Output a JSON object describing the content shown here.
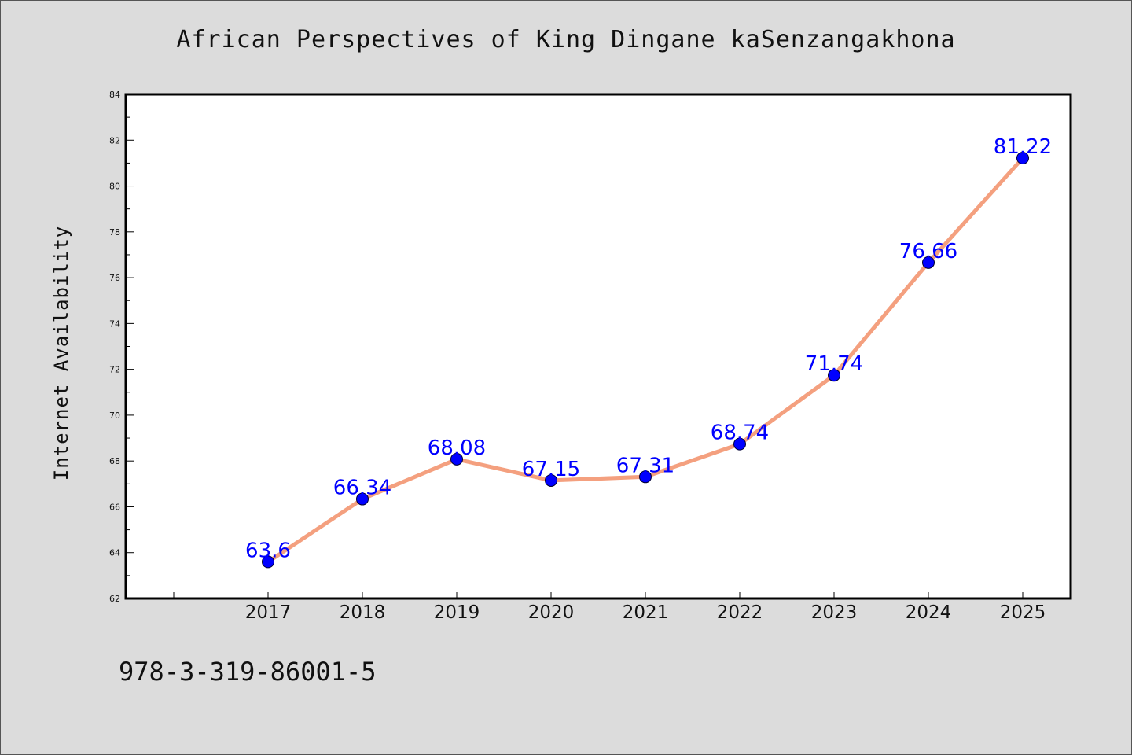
{
  "colors": {
    "background": "#dcdcdc",
    "plot_background": "#ffffff",
    "line": "#f4a07f",
    "marker": "#0000ff",
    "label": "#0000ff",
    "text": "#111111"
  },
  "footnote": "978-3-319-86001-5",
  "chart_data": {
    "type": "line",
    "title": "African Perspectives of King Dingane kaSenzangakhona",
    "xlabel": "",
    "ylabel": "Internet Availability",
    "categories": [
      "2017",
      "2018",
      "2019",
      "2020",
      "2021",
      "2022",
      "2023",
      "2024",
      "2025"
    ],
    "series": [
      {
        "values": [
          63.6,
          66.34,
          68.08,
          67.15,
          67.31,
          68.74,
          71.74,
          76.66,
          81.22
        ],
        "labels": [
          "63.6",
          "66.34",
          "68.08",
          "67.15",
          "67.31",
          "68.74",
          "71.74",
          "76.66",
          "81.22"
        ]
      }
    ],
    "ylim": [
      62,
      84
    ],
    "yticks": [
      62,
      64,
      66,
      68,
      70,
      72,
      74,
      76,
      78,
      80,
      82,
      84
    ],
    "grid": false,
    "legend": "none"
  }
}
